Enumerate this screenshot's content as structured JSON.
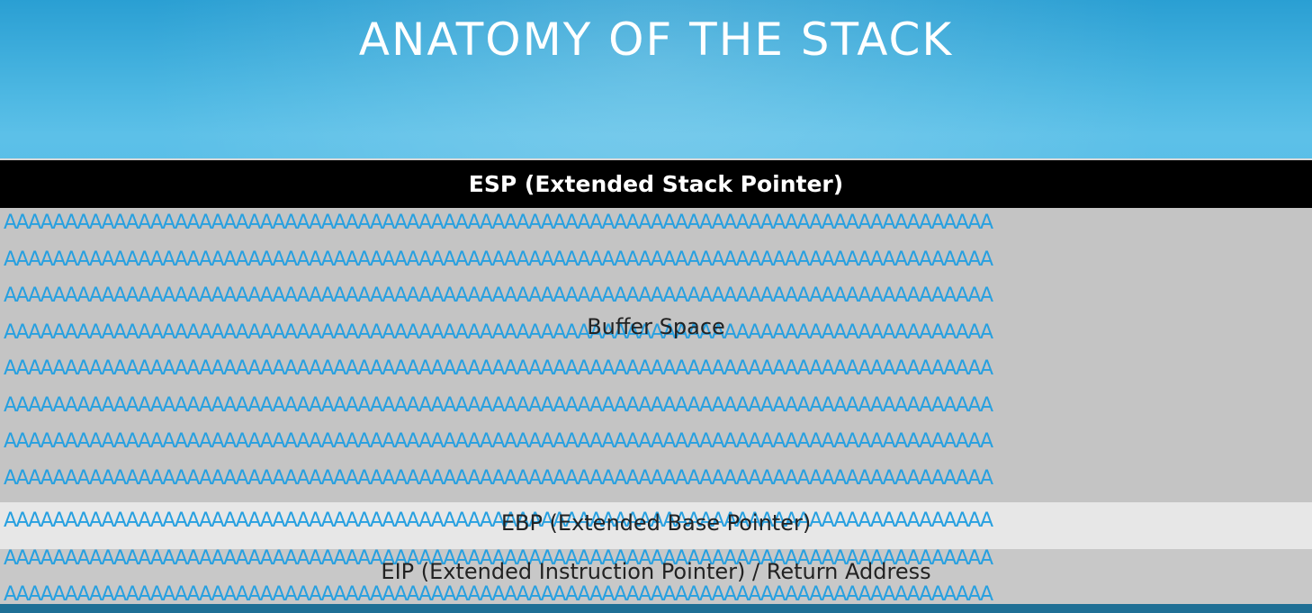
{
  "title": "ANATOMY OF THE STACK",
  "stack": {
    "esp_label": "ESP (Extended Stack Pointer)",
    "buffer_label": "Buffer Space",
    "ebp_label": "EBP (Extended Base Pointer)",
    "eip_label": "EIP (Extended Instruction Pointer) / Return Address",
    "fill_row": "AAAAAAAAAAAAAAAAAAAAAAAAAAAAAAAAAAAAAAAAAAAAAAAAAAAAAAAAAAAAAAAAAAAAAAAAAAAAAAAAA",
    "buffer_row_count": 8,
    "ebp_row_count": 1,
    "eip_row_count": 2
  },
  "colors": {
    "background": "#3aa6d9",
    "esp_bar": "#000000",
    "buffer": "#c4c4c4",
    "ebp": "#e7e7e7",
    "eip": "#c8c8c8",
    "fill_text": "#27a0e0"
  }
}
